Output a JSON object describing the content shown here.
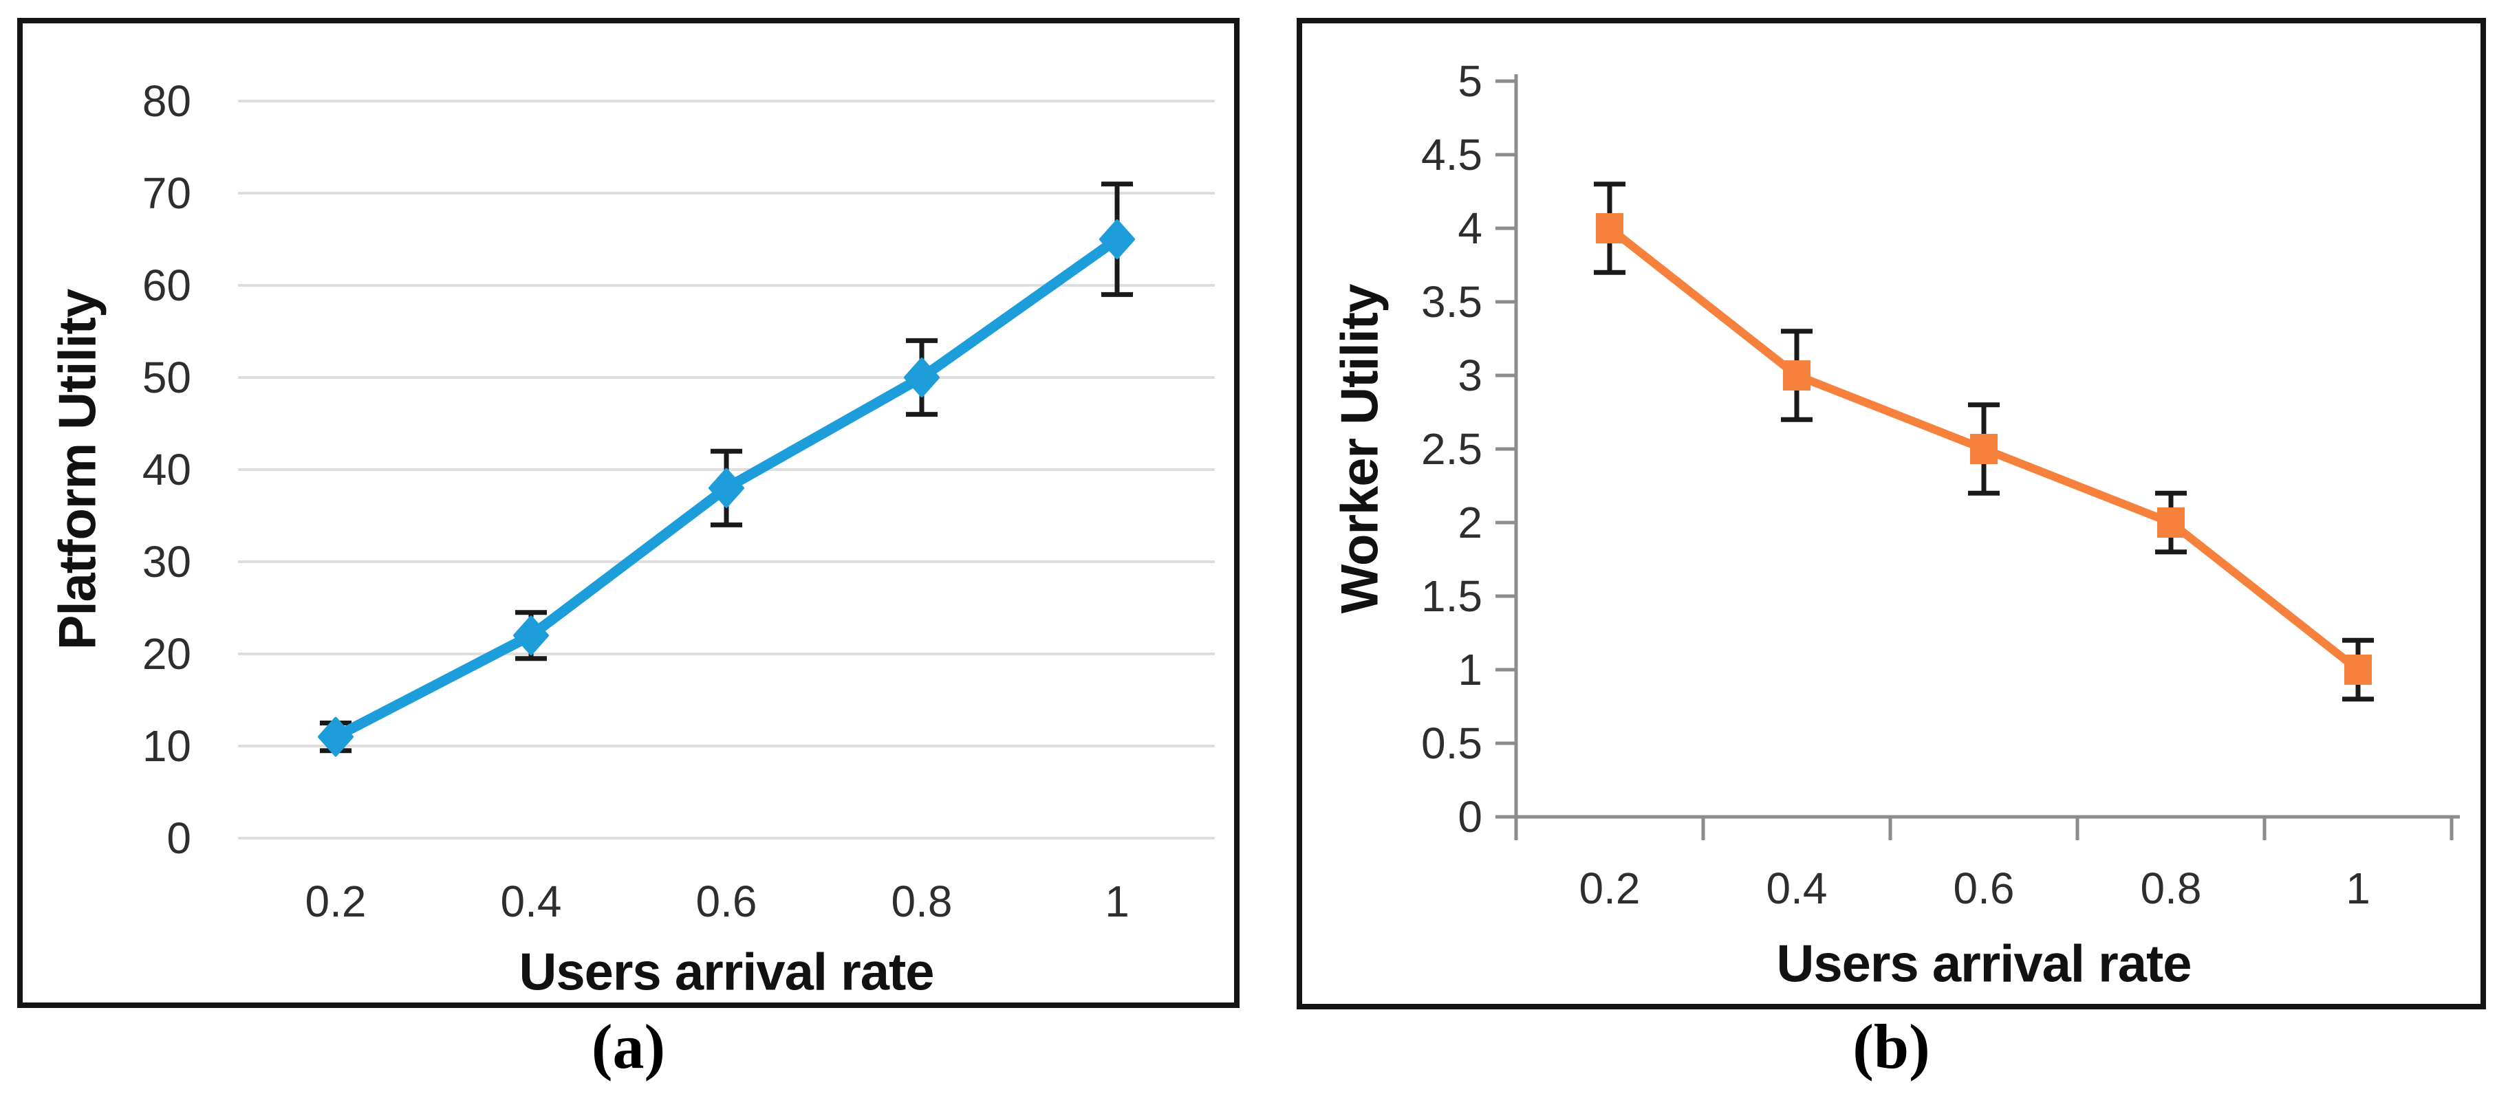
{
  "figure": {
    "background": "#ffffff",
    "captions": {
      "a": "(a)",
      "b": "(b)"
    }
  },
  "chart_data": [
    {
      "type": "line",
      "panel": "a",
      "panel_caption": "(a)",
      "title": "",
      "xlabel": "Users arrival rate",
      "ylabel": "Platform Utility",
      "categories": [
        0.2,
        0.4,
        0.6,
        0.8,
        1
      ],
      "x_tick_labels": [
        "0.2",
        "0.4",
        "0.6",
        "0.8",
        "1"
      ],
      "y_tick_labels": [
        "0",
        "10",
        "20",
        "30",
        "40",
        "50",
        "60",
        "70",
        "80"
      ],
      "ylim": [
        0,
        80
      ],
      "ytick_step": 10,
      "grid": true,
      "axis_lines": false,
      "legend": "none",
      "series": [
        {
          "name": "Platform Utility",
          "x": [
            0.2,
            0.4,
            0.6,
            0.8,
            1
          ],
          "values": [
            11,
            22,
            38,
            50,
            65
          ],
          "error_bars": [
            1.5,
            2.5,
            4,
            4,
            6
          ],
          "color": "#1D9DD9",
          "marker": "diamond",
          "error_color": "#1a1a1a"
        }
      ]
    },
    {
      "type": "line",
      "panel": "b",
      "panel_caption": "(b)",
      "title": "",
      "xlabel": "Users arrival rate",
      "ylabel": "Worker Utility",
      "categories": [
        0.2,
        0.4,
        0.6,
        0.8,
        1
      ],
      "x_tick_labels": [
        "0.2",
        "0.4",
        "0.6",
        "0.8",
        "1"
      ],
      "y_tick_labels": [
        "0",
        "0.5",
        "1",
        "1.5",
        "2",
        "2.5",
        "3",
        "3.5",
        "4",
        "4.5",
        "5"
      ],
      "ylim": [
        0,
        5
      ],
      "ytick_step": 0.5,
      "grid": false,
      "axis_lines": true,
      "legend": "none",
      "series": [
        {
          "name": "Worker Utility",
          "x": [
            0.2,
            0.4,
            0.6,
            0.8,
            1
          ],
          "values": [
            4,
            3,
            2.5,
            2,
            1
          ],
          "error_bars": [
            0.3,
            0.3,
            0.3,
            0.2,
            0.2
          ],
          "color": "#F5813C",
          "marker": "square",
          "error_color": "#1a1a1a"
        }
      ]
    }
  ],
  "style": {
    "gridline_color": "#DEDEDE",
    "axis_line_color": "#8C8C8C",
    "tick_label_color": "#2e2e2e",
    "panel_border_color": "#141414"
  }
}
